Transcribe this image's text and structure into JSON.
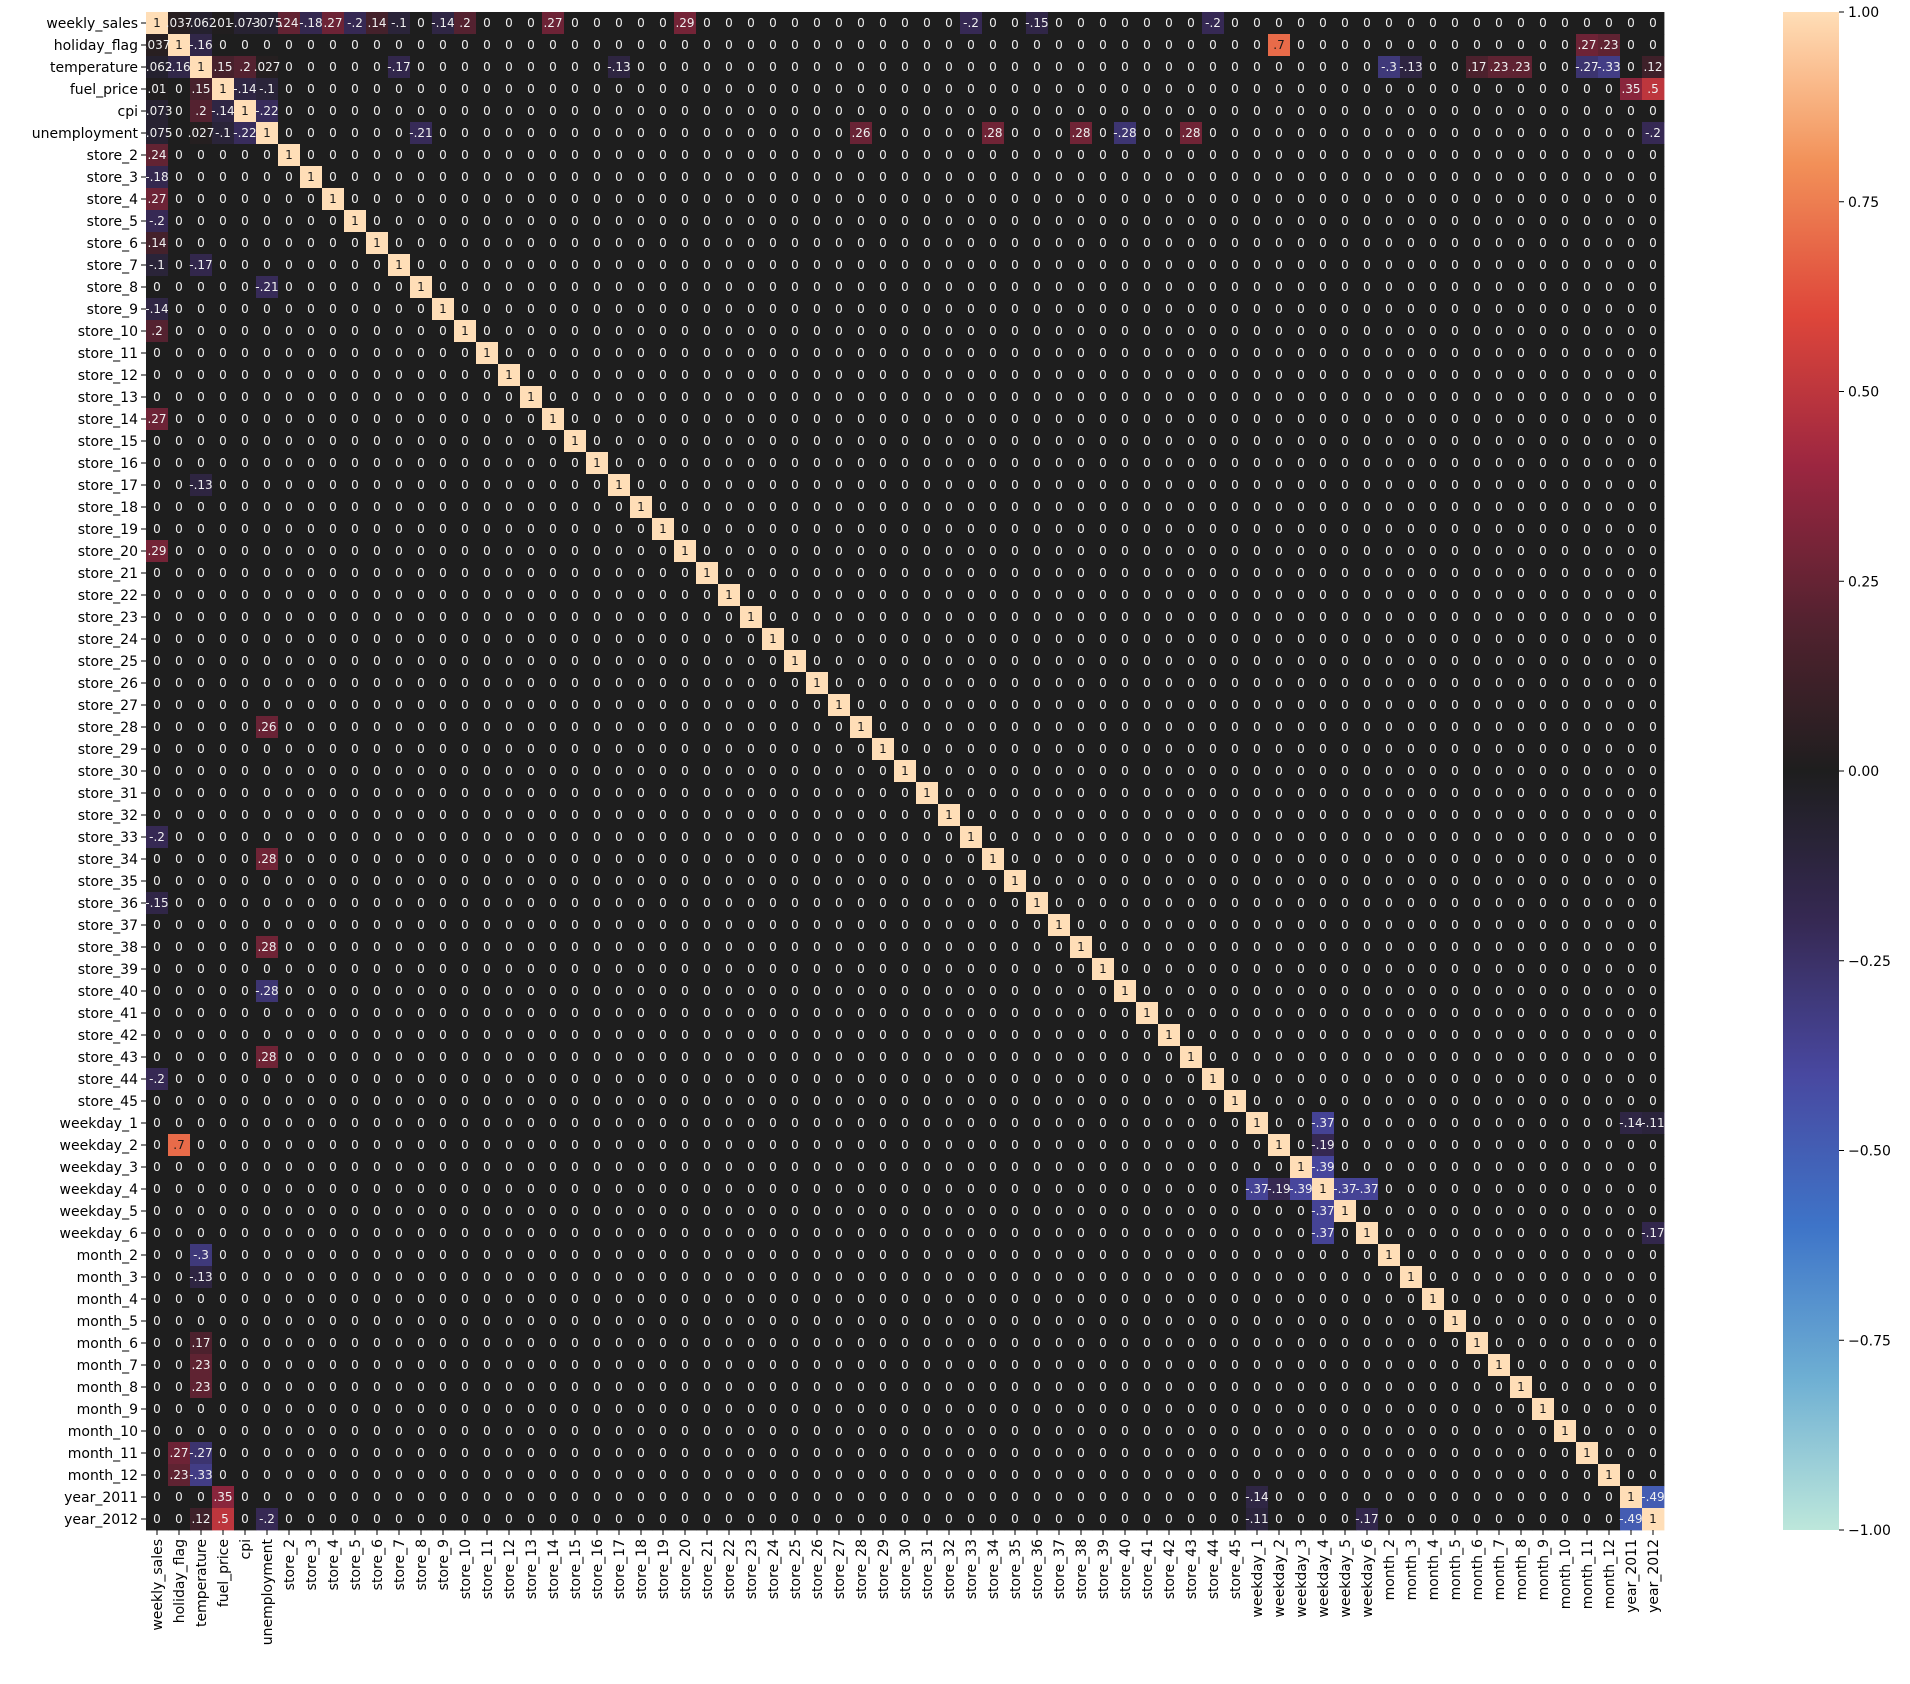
{
  "chart_data": {
    "type": "heatmap",
    "title": "",
    "xlabel": "",
    "ylabel": "",
    "labels": [
      "weekly_sales",
      "holiday_flag",
      "temperature",
      "fuel_price",
      "cpi",
      "unemployment",
      "store_2",
      "store_3",
      "store_4",
      "store_5",
      "store_6",
      "store_7",
      "store_8",
      "store_9",
      "store_10",
      "store_11",
      "store_12",
      "store_13",
      "store_14",
      "store_15",
      "store_16",
      "store_17",
      "store_18",
      "store_19",
      "store_20",
      "store_21",
      "store_22",
      "store_23",
      "store_24",
      "store_25",
      "store_26",
      "store_27",
      "store_28",
      "store_29",
      "store_30",
      "store_31",
      "store_32",
      "store_33",
      "store_34",
      "store_35",
      "store_36",
      "store_37",
      "store_38",
      "store_39",
      "store_40",
      "store_41",
      "store_42",
      "store_43",
      "store_44",
      "store_45",
      "weekday_1",
      "weekday_2",
      "weekday_3",
      "weekday_4",
      "weekday_5",
      "weekday_6",
      "month_2",
      "month_3",
      "month_4",
      "month_5",
      "month_6",
      "month_7",
      "month_8",
      "month_9",
      "month_10",
      "month_11",
      "month_12",
      "year_2011",
      "year_2012"
    ],
    "annotated": true,
    "value_format": "%.2g",
    "vmin": -1,
    "vmax": 1,
    "center": 0,
    "colormap": "icefire",
    "colorbar": {
      "ticks": [
        1.0,
        0.75,
        0.5,
        0.25,
        0.0,
        -0.25,
        -0.5,
        -0.75,
        -1.0
      ],
      "tick_labels": [
        "1.00",
        "0.75",
        "0.50",
        "0.25",
        "0.00",
        "−0.25",
        "−0.50",
        "−0.75",
        "−1.00"
      ]
    },
    "base_off_diagonal_value": 0.0,
    "known_values": [
      {
        "row": "weekly_sales",
        "col": "holiday_flag",
        "value": 0.037
      },
      {
        "row": "weekly_sales",
        "col": "temperature",
        "value": -0.062
      },
      {
        "row": "weekly_sales",
        "col": "fuel_price",
        "value": 0.01
      },
      {
        "row": "weekly_sales",
        "col": "cpi",
        "value": -0.073
      },
      {
        "row": "weekly_sales",
        "col": "unemployment",
        "value": -0.075
      },
      {
        "row": "weekly_sales",
        "col": "store_2",
        "value": 0.24
      },
      {
        "row": "weekly_sales",
        "col": "store_3",
        "value": -0.18
      },
      {
        "row": "weekly_sales",
        "col": "store_4",
        "value": 0.27
      },
      {
        "row": "weekly_sales",
        "col": "store_5",
        "value": -0.2
      },
      {
        "row": "weekly_sales",
        "col": "store_6",
        "value": 0.14
      },
      {
        "row": "weekly_sales",
        "col": "store_7",
        "value": -0.1
      },
      {
        "row": "weekly_sales",
        "col": "store_9",
        "value": -0.14
      },
      {
        "row": "weekly_sales",
        "col": "store_10",
        "value": 0.2
      },
      {
        "row": "weekly_sales",
        "col": "store_14",
        "value": 0.27
      },
      {
        "row": "weekly_sales",
        "col": "store_20",
        "value": 0.29
      },
      {
        "row": "weekly_sales",
        "col": "store_33",
        "value": -0.2
      },
      {
        "row": "weekly_sales",
        "col": "store_36",
        "value": -0.15
      },
      {
        "row": "weekly_sales",
        "col": "store_44",
        "value": -0.2
      },
      {
        "row": "holiday_flag",
        "col": "temperature",
        "value": -0.16
      },
      {
        "row": "holiday_flag",
        "col": "weekday_2",
        "value": 0.7
      },
      {
        "row": "holiday_flag",
        "col": "month_11",
        "value": 0.27
      },
      {
        "row": "holiday_flag",
        "col": "month_12",
        "value": 0.23
      },
      {
        "row": "temperature",
        "col": "fuel_price",
        "value": 0.15
      },
      {
        "row": "temperature",
        "col": "cpi",
        "value": 0.2
      },
      {
        "row": "temperature",
        "col": "unemployment",
        "value": 0.027
      },
      {
        "row": "temperature",
        "col": "store_7",
        "value": -0.17
      },
      {
        "row": "temperature",
        "col": "store_17",
        "value": -0.13
      },
      {
        "row": "temperature",
        "col": "month_2",
        "value": -0.3
      },
      {
        "row": "temperature",
        "col": "month_3",
        "value": -0.13
      },
      {
        "row": "temperature",
        "col": "month_6",
        "value": 0.17
      },
      {
        "row": "temperature",
        "col": "month_7",
        "value": 0.23
      },
      {
        "row": "temperature",
        "col": "month_8",
        "value": 0.23
      },
      {
        "row": "temperature",
        "col": "month_11",
        "value": -0.27
      },
      {
        "row": "temperature",
        "col": "month_12",
        "value": -0.33
      },
      {
        "row": "temperature",
        "col": "year_2012",
        "value": 0.12
      },
      {
        "row": "fuel_price",
        "col": "cpi",
        "value": -0.14
      },
      {
        "row": "fuel_price",
        "col": "unemployment",
        "value": -0.1
      },
      {
        "row": "fuel_price",
        "col": "year_2011",
        "value": 0.35
      },
      {
        "row": "fuel_price",
        "col": "year_2012",
        "value": 0.5
      },
      {
        "row": "cpi",
        "col": "unemployment",
        "value": -0.22
      },
      {
        "row": "unemployment",
        "col": "store_8",
        "value": -0.21
      },
      {
        "row": "unemployment",
        "col": "store_28",
        "value": 0.26
      },
      {
        "row": "unemployment",
        "col": "store_34",
        "value": 0.28
      },
      {
        "row": "unemployment",
        "col": "store_38",
        "value": 0.28
      },
      {
        "row": "unemployment",
        "col": "store_40",
        "value": -0.28
      },
      {
        "row": "unemployment",
        "col": "store_43",
        "value": 0.28
      },
      {
        "row": "unemployment",
        "col": "year_2012",
        "value": -0.2
      },
      {
        "row": "weekday_1",
        "col": "weekday_4",
        "value": -0.37
      },
      {
        "row": "weekday_2",
        "col": "weekday_4",
        "value": -0.19
      },
      {
        "row": "weekday_3",
        "col": "weekday_4",
        "value": -0.39
      },
      {
        "row": "weekday_4",
        "col": "weekday_5",
        "value": -0.37
      },
      {
        "row": "weekday_4",
        "col": "weekday_6",
        "value": -0.37
      },
      {
        "row": "year_2011",
        "col": "year_2012",
        "value": -0.49
      },
      {
        "row": "weekday_1",
        "col": "year_2011",
        "value": -0.14
      },
      {
        "row": "weekday_1",
        "col": "year_2012",
        "value": -0.11
      },
      {
        "row": "weekday_6",
        "col": "year_2012",
        "value": -0.17
      }
    ]
  }
}
